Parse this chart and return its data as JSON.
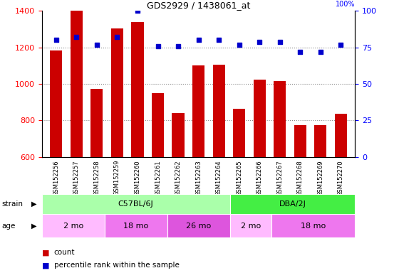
{
  "title": "GDS2929 / 1438061_at",
  "samples": [
    "GSM152256",
    "GSM152257",
    "GSM152258",
    "GSM152259",
    "GSM152260",
    "GSM152261",
    "GSM152262",
    "GSM152263",
    "GSM152264",
    "GSM152265",
    "GSM152266",
    "GSM152267",
    "GSM152268",
    "GSM152269",
    "GSM152270"
  ],
  "counts": [
    1185,
    1400,
    975,
    1305,
    1340,
    950,
    840,
    1100,
    1105,
    865,
    1025,
    1015,
    775,
    775,
    835
  ],
  "percentile_ranks": [
    80,
    82,
    77,
    82,
    100,
    76,
    76,
    80,
    80,
    77,
    79,
    79,
    72,
    72,
    77
  ],
  "ylim_left": [
    600,
    1400
  ],
  "ylim_right": [
    0,
    100
  ],
  "yticks_left": [
    600,
    800,
    1000,
    1200,
    1400
  ],
  "yticks_right": [
    0,
    25,
    50,
    75,
    100
  ],
  "bar_color": "#cc0000",
  "dot_color": "#0000cc",
  "strain_groups": [
    {
      "label": "C57BL/6J",
      "start": 0,
      "end": 9,
      "color": "#aaffaa"
    },
    {
      "label": "DBA/2J",
      "start": 9,
      "end": 15,
      "color": "#44ee44"
    }
  ],
  "age_groups": [
    {
      "label": "2 mo",
      "start": 0,
      "end": 3,
      "color": "#ffbbff"
    },
    {
      "label": "18 mo",
      "start": 3,
      "end": 6,
      "color": "#ee77ee"
    },
    {
      "label": "26 mo",
      "start": 6,
      "end": 9,
      "color": "#dd55dd"
    },
    {
      "label": "2 mo",
      "start": 9,
      "end": 11,
      "color": "#ffbbff"
    },
    {
      "label": "18 mo",
      "start": 11,
      "end": 15,
      "color": "#ee77ee"
    }
  ],
  "grid_yticks": [
    800,
    1000,
    1200
  ],
  "grid_color": "#888888",
  "background_color": "#ffffff",
  "xtick_area_color": "#cccccc",
  "bar_width": 0.6
}
